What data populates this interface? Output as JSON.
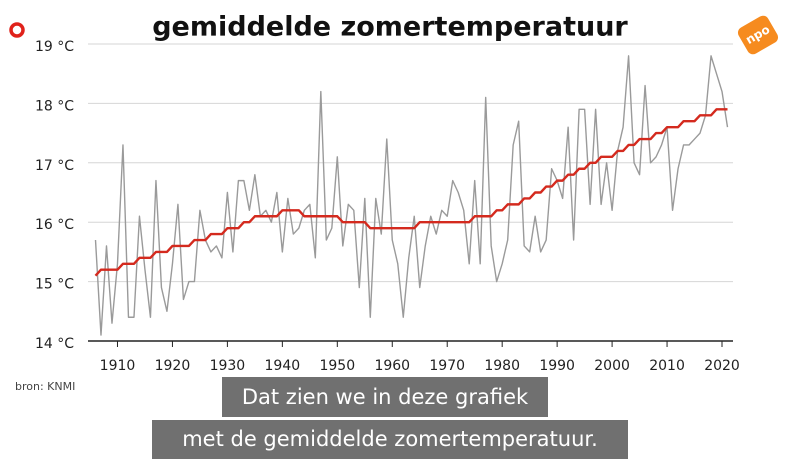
{
  "chart_data": {
    "type": "line",
    "title": "gemiddelde zomertemperatuur",
    "source": "bron: KNMI",
    "x": [
      1906,
      1907,
      1908,
      1909,
      1910,
      1911,
      1912,
      1913,
      1914,
      1915,
      1916,
      1917,
      1918,
      1919,
      1920,
      1921,
      1922,
      1923,
      1924,
      1925,
      1926,
      1927,
      1928,
      1929,
      1930,
      1931,
      1932,
      1933,
      1934,
      1935,
      1936,
      1937,
      1938,
      1939,
      1940,
      1941,
      1942,
      1943,
      1944,
      1945,
      1946,
      1947,
      1948,
      1949,
      1950,
      1951,
      1952,
      1953,
      1954,
      1955,
      1956,
      1957,
      1958,
      1959,
      1960,
      1961,
      1962,
      1963,
      1964,
      1965,
      1966,
      1967,
      1968,
      1969,
      1970,
      1971,
      1972,
      1973,
      1974,
      1975,
      1976,
      1977,
      1978,
      1979,
      1980,
      1981,
      1982,
      1983,
      1984,
      1985,
      1986,
      1987,
      1988,
      1989,
      1990,
      1991,
      1992,
      1993,
      1994,
      1995,
      1996,
      1997,
      1998,
      1999,
      2000,
      2001,
      2002,
      2003,
      2004,
      2005,
      2006,
      2007,
      2008,
      2009,
      2010,
      2011,
      2012,
      2013,
      2014,
      2015,
      2016,
      2017,
      2018,
      2019,
      2020,
      2021
    ],
    "series": [
      {
        "color": "#9a9a9a",
        "values": [
          15.7,
          14.1,
          15.6,
          14.3,
          15.3,
          17.3,
          14.4,
          14.4,
          16.1,
          15.2,
          14.4,
          16.7,
          14.9,
          14.5,
          15.3,
          16.3,
          14.7,
          15.0,
          15.0,
          16.2,
          15.7,
          15.5,
          15.6,
          15.4,
          16.5,
          15.5,
          16.7,
          16.7,
          16.2,
          16.8,
          16.1,
          16.2,
          16.0,
          16.5,
          15.5,
          16.4,
          15.8,
          15.9,
          16.2,
          16.3,
          15.4,
          18.2,
          15.7,
          15.9,
          17.1,
          15.6,
          16.3,
          16.2,
          14.9,
          16.4,
          14.4,
          16.4,
          15.8,
          17.4,
          15.7,
          15.3,
          14.4,
          15.4,
          16.1,
          14.9,
          15.6,
          16.1,
          15.8,
          16.2,
          16.1,
          16.7,
          16.5,
          16.2,
          15.3,
          16.7,
          15.3,
          18.1,
          15.6,
          15.0,
          15.3,
          15.7,
          17.3,
          17.7,
          15.6,
          15.5,
          16.1,
          15.5,
          15.7,
          16.9,
          16.7,
          16.4,
          17.6,
          15.7,
          17.9,
          17.9,
          16.3,
          17.9,
          16.3,
          17.0,
          16.2,
          17.2,
          17.6,
          18.8,
          17.0,
          16.8,
          18.3,
          17.0,
          17.1,
          17.3,
          17.6,
          16.2,
          16.9,
          17.3,
          17.3,
          17.4,
          17.5,
          17.8,
          18.8,
          18.5,
          18.2,
          17.6
        ]
      },
      {
        "color": "#d42a1e",
        "values": [
          15.1,
          15.2,
          15.2,
          15.2,
          15.2,
          15.3,
          15.3,
          15.3,
          15.4,
          15.4,
          15.4,
          15.5,
          15.5,
          15.5,
          15.6,
          15.6,
          15.6,
          15.6,
          15.7,
          15.7,
          15.7,
          15.8,
          15.8,
          15.8,
          15.9,
          15.9,
          15.9,
          16.0,
          16.0,
          16.1,
          16.1,
          16.1,
          16.1,
          16.1,
          16.2,
          16.2,
          16.2,
          16.2,
          16.1,
          16.1,
          16.1,
          16.1,
          16.1,
          16.1,
          16.1,
          16.0,
          16.0,
          16.0,
          16.0,
          16.0,
          15.9,
          15.9,
          15.9,
          15.9,
          15.9,
          15.9,
          15.9,
          15.9,
          15.9,
          16.0,
          16.0,
          16.0,
          16.0,
          16.0,
          16.0,
          16.0,
          16.0,
          16.0,
          16.0,
          16.1,
          16.1,
          16.1,
          16.1,
          16.2,
          16.2,
          16.3,
          16.3,
          16.3,
          16.4,
          16.4,
          16.5,
          16.5,
          16.6,
          16.6,
          16.7,
          16.7,
          16.8,
          16.8,
          16.9,
          16.9,
          17.0,
          17.0,
          17.1,
          17.1,
          17.1,
          17.2,
          17.2,
          17.3,
          17.3,
          17.4,
          17.4,
          17.4,
          17.5,
          17.5,
          17.6,
          17.6,
          17.6,
          17.7,
          17.7,
          17.7,
          17.8,
          17.8,
          17.8,
          17.9,
          17.9,
          17.9
        ]
      }
    ],
    "xlim": [
      1905,
      2022
    ],
    "xticks": [
      1910,
      1920,
      1930,
      1940,
      1950,
      1960,
      1970,
      1980,
      1990,
      2000,
      2010,
      2020
    ],
    "ylim": [
      14,
      19
    ],
    "yticks": [
      {
        "value": 14,
        "label": "14 °C"
      },
      {
        "value": 15,
        "label": "15 °C"
      },
      {
        "value": 16,
        "label": "16 °C"
      },
      {
        "value": 17,
        "label": "17 °C"
      },
      {
        "value": 18,
        "label": "18 °C"
      },
      {
        "value": 19,
        "label": "19 °C"
      }
    ],
    "grid": true
  },
  "logo": "npo",
  "captions": [
    "Dat zien we in deze grafiek",
    "met de gemiddelde zomertemperatuur."
  ]
}
